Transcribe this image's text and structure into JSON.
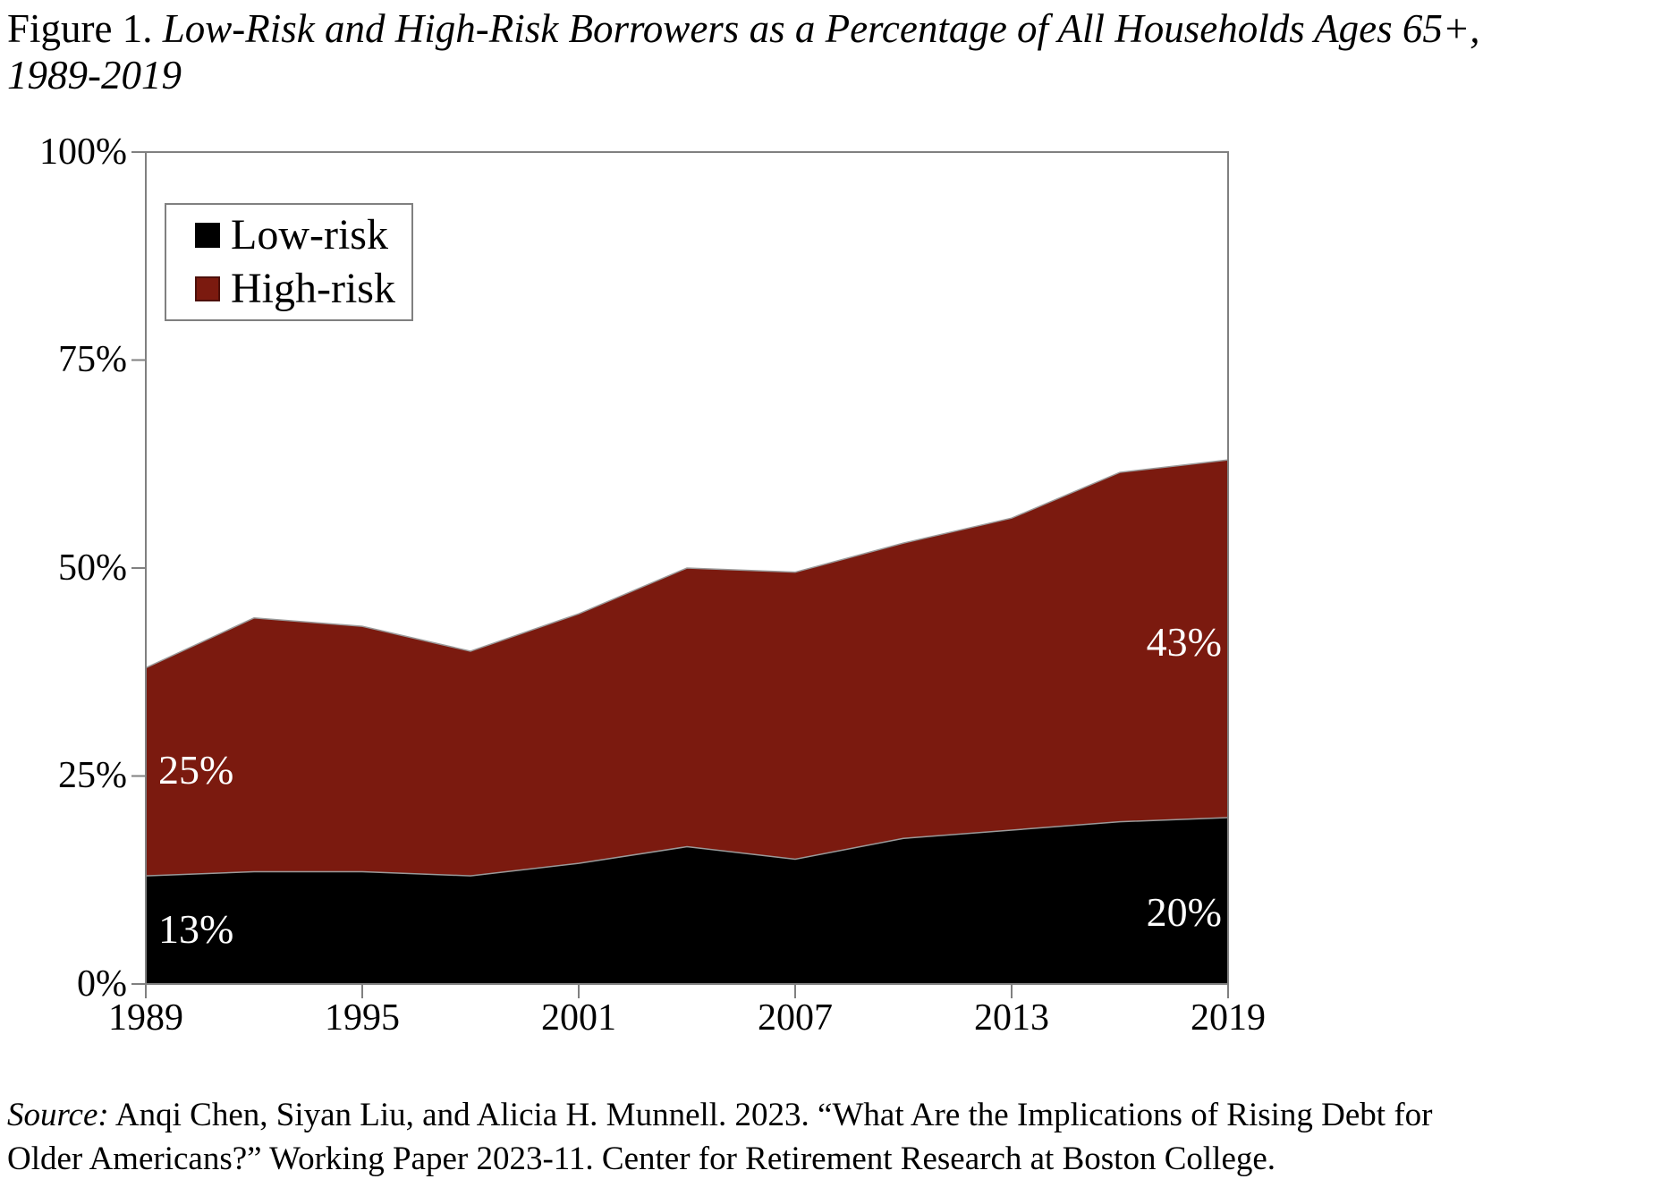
{
  "title": {
    "prefix": "Figure 1. ",
    "italic": "Low-Risk and High-Risk Borrowers as a Percentage of All Households Ages 65+,",
    "line2": "1989-2019"
  },
  "legend": {
    "items": [
      {
        "label": "Low-risk",
        "color": "#000000"
      },
      {
        "label": "High-risk",
        "color": "#7B1A0F"
      }
    ]
  },
  "chart_data": {
    "type": "area",
    "stacked": true,
    "title": "Low-Risk and High-Risk Borrowers as a Percentage of All Households Ages 65+, 1989-2019",
    "x": [
      1989,
      1992,
      1995,
      1998,
      2001,
      2004,
      2007,
      2010,
      2013,
      2016,
      2019
    ],
    "series": [
      {
        "name": "Low-risk",
        "color": "#000000",
        "values": [
          13,
          13.5,
          13.5,
          13,
          14.5,
          16.5,
          15,
          17.5,
          18.5,
          19.5,
          20
        ]
      },
      {
        "name": "High-risk",
        "color": "#7B1A0F",
        "values": [
          25,
          30.5,
          29.5,
          27,
          30,
          33.5,
          34.5,
          35.5,
          37.5,
          42,
          43
        ]
      }
    ],
    "ylim": [
      0,
      100
    ],
    "yticks": [
      "0%",
      "25%",
      "50%",
      "75%",
      "100%"
    ],
    "xticks": [
      "1989",
      "1995",
      "2001",
      "2007",
      "2013",
      "2019"
    ],
    "grid": false,
    "legend_position": "top-left-inside",
    "axis_color": "#808080",
    "boundary_outline_color": "#9a9a9a",
    "annotations": [
      {
        "text": "25%",
        "series": "High-risk",
        "x": 1989
      },
      {
        "text": "13%",
        "series": "Low-risk",
        "x": 1989
      },
      {
        "text": "43%",
        "series": "High-risk",
        "x": 2019
      },
      {
        "text": "20%",
        "series": "Low-risk",
        "x": 2019
      }
    ]
  },
  "source": {
    "prefix": "Source:",
    "text": " Anqi Chen, Siyan Liu, and Alicia H. Munnell. 2023. “What Are the Implications of Rising Debt for Older Americans?” Working Paper 2023-11. Center for Retirement Research at Boston College."
  }
}
